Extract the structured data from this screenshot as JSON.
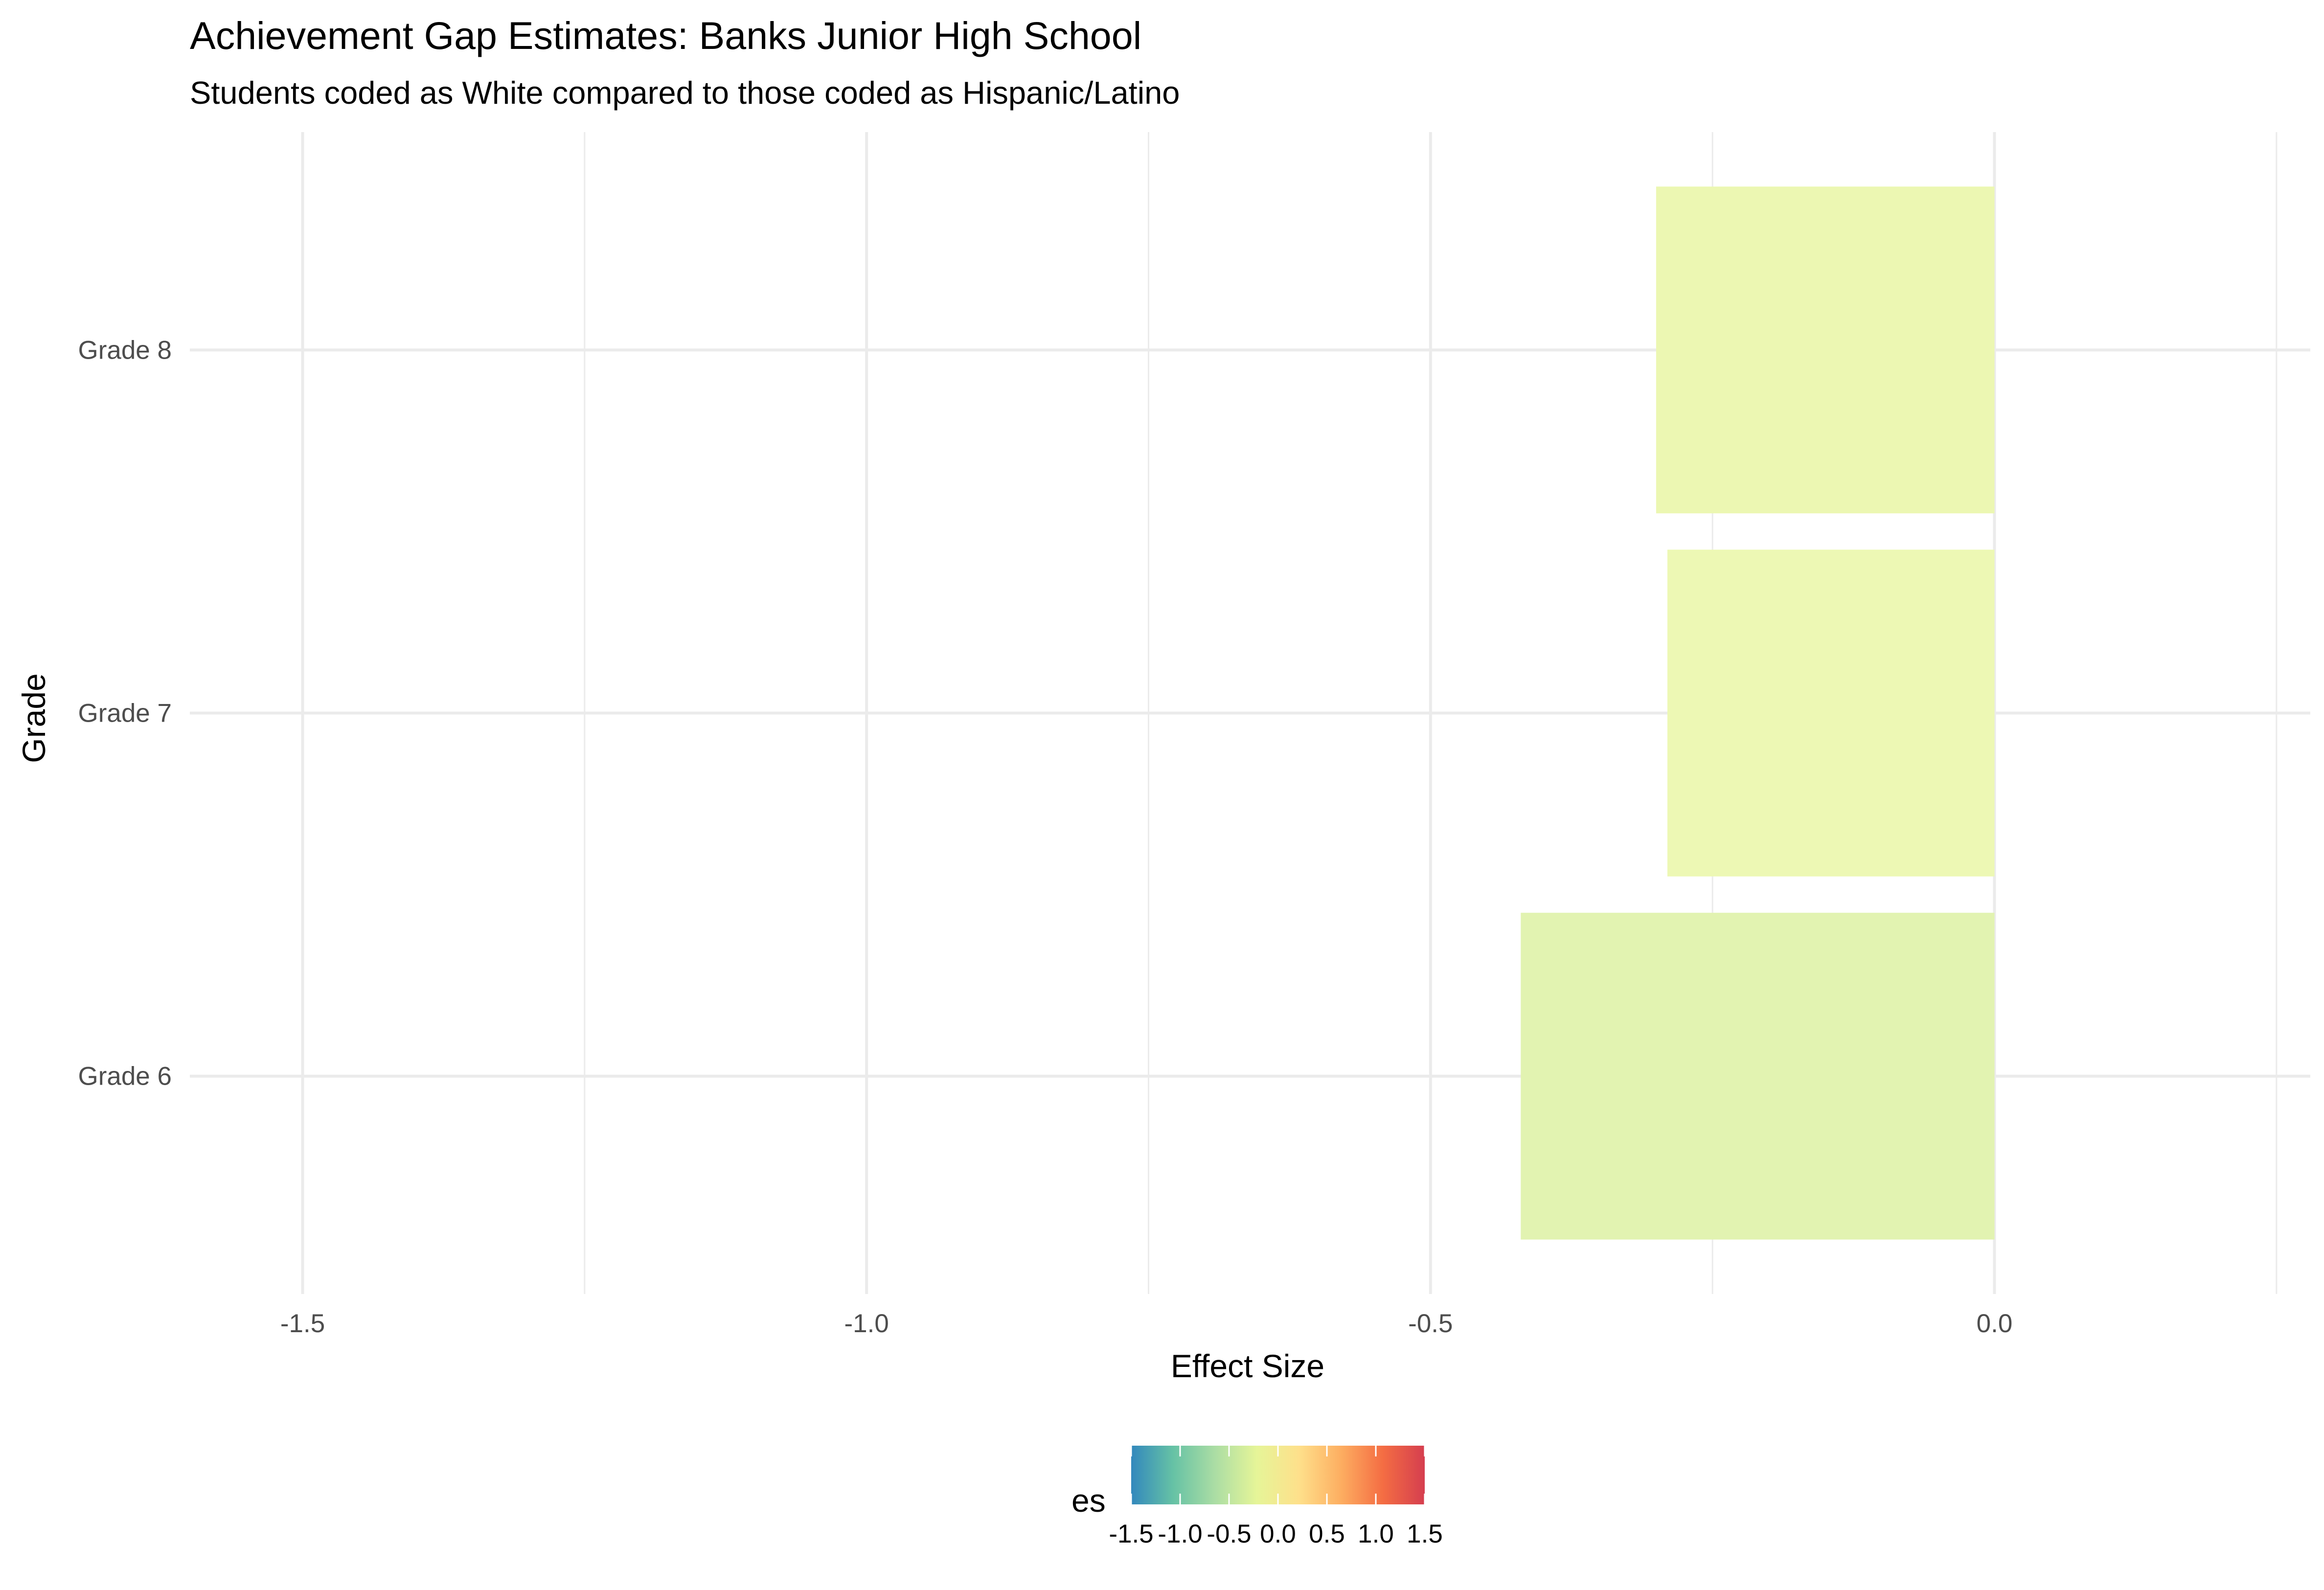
{
  "chart_data": {
    "type": "bar",
    "orientation": "horizontal",
    "title": "Achievement Gap Estimates: Banks Junior High School",
    "subtitle": "Students coded as White compared to those coded as Hispanic/Latino",
    "xlabel": "Effect Size",
    "ylabel": "Grade",
    "categories": [
      "Grade 6",
      "Grade 7",
      "Grade 8"
    ],
    "values": [
      -0.42,
      -0.29,
      -0.3
    ],
    "bar_colors": [
      "#e2f3b1",
      "#edf8b4",
      "#ecf7b2"
    ],
    "xlim": [
      -1.6,
      0.28
    ],
    "x_ticks": [
      -1.5,
      -1.0,
      -0.5,
      0.0
    ],
    "x_tick_labels": [
      "-1.5",
      "-1.0",
      "-0.5",
      "0.0"
    ],
    "grid": true,
    "legend": {
      "title": "es",
      "position": "bottom",
      "type": "colorbar",
      "palette": "Spectral (reversed)",
      "colors": [
        "#3288bd",
        "#66c2a5",
        "#abdda4",
        "#e6f598",
        "#fee08b",
        "#fdae61",
        "#f46d43",
        "#d53e4f"
      ],
      "range": [
        -1.5,
        1.5
      ],
      "ticks": [
        -1.5,
        -1.0,
        -0.5,
        0.0,
        0.5,
        1.0,
        1.5
      ],
      "tick_labels": [
        "-1.5",
        "-1.0",
        "-0.5",
        "0.0",
        "0.5",
        "1.0",
        "1.5"
      ]
    }
  }
}
